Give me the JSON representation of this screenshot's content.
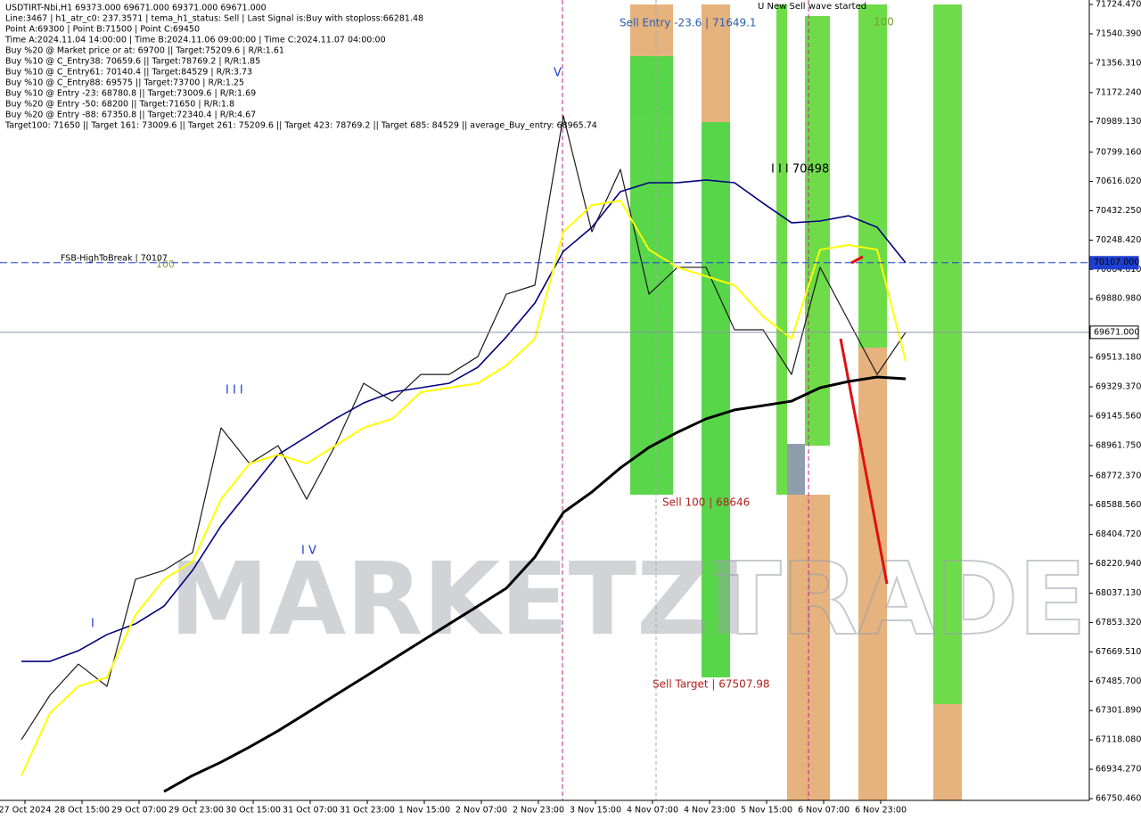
{
  "chart_data": {
    "type": "line",
    "header_lines": [
      "USDTIRT-Nbi,H1  69373.000 69671.000 69371.000 69671.000",
      "Line:3467 | h1_atr_c0: 237.3571 | tema_h1_status: Sell | Last Signal is:Buy with stoploss:66281.48",
      "Point A:69300 | Point B:71500 | Point C:69450",
      "Time A:2024.11.04 14:00:00 | Time B:2024.11.06 09:00:00 | Time C:2024.11.07 04:00:00",
      "Buy %20 @ Market price or at: 69700 || Target:75209.6 | R/R:1.61",
      "Buy %10 @ C_Entry38: 70659.6 || Target:78769.2 | R/R:1.85",
      "Buy %10 @ C_Entry61: 70140.4 || Target:84529 | R/R:3.73",
      "Buy %10 @ C_Entry88: 69575 || Target:73700 | R/R:1.25",
      "Buy %10 @ Entry -23: 68780.8 || Target:73009.6 | R/R:1.69",
      "Buy %20 @ Entry -50: 68200 || Target:71650 | R/R:1.8",
      "Buy %20 @ Entry -88: 67350.8 || Target:72340.4 | R/R:4.67",
      "Target100: 71650 || Target 161: 73009.6 || Target 261: 75209.6 || Target 423: 78769.2 || Target 685: 84529 || average_Buy_entry: 68965.74"
    ],
    "annotations": [
      "Sell Entry -23.6 | 71649.1",
      "U New Sell wave started",
      "100",
      "I I I 70498",
      "FSB-HighToBreak | 70107",
      "100",
      "Sell 100 | 68646",
      "Sell Target | 67507.98",
      "V",
      "I I I",
      "I V",
      "I"
    ],
    "watermark": [
      "MARKETZI",
      "TRADE"
    ],
    "x_labels": [
      "27 Oct 2024",
      "28 Oct 15:00",
      "29 Oct 07:00",
      "29 Oct 23:00",
      "30 Oct 15:00",
      "31 Oct 07:00",
      "31 Oct 23:00",
      "1 Nov 15:00",
      "2 Nov 07:00",
      "2 Nov 23:00",
      "3 Nov 15:00",
      "4 Nov 07:00",
      "4 Nov 23:00",
      "5 Nov 15:00",
      "6 Nov 07:00",
      "6 Nov 23:00"
    ],
    "series": [
      {
        "name": "Price",
        "color": "#1a1a1a",
        "values": [
          67119,
          67398,
          67593,
          67454,
          68124,
          68180,
          68291,
          69073,
          68849,
          68961,
          68626,
          68961,
          69352,
          69240,
          69407,
          69407,
          69519,
          69910,
          69966,
          71027,
          70301,
          70692,
          69910,
          70078,
          70078,
          69687,
          69687,
          69407,
          70078,
          69742,
          69407,
          69671
        ]
      },
      {
        "name": "MA fast",
        "color": "#00007f",
        "values": [
          67610,
          67610,
          67677,
          67778,
          67845,
          67956,
          68180,
          68459,
          68682,
          68905,
          69017,
          69129,
          69229,
          69296,
          69324,
          69352,
          69452,
          69642,
          69854,
          70178,
          70329,
          70552,
          70608,
          70608,
          70625,
          70608,
          70480,
          70357,
          70368,
          70401,
          70329,
          70106
        ]
      },
      {
        "name": "MA slow",
        "color": "#000000",
        "values": [
          null,
          null,
          null,
          null,
          null,
          66795,
          66895,
          66979,
          67074,
          67175,
          67286,
          67398,
          67509,
          67621,
          67733,
          67845,
          67956,
          68068,
          68263,
          68543,
          68671,
          68822,
          68950,
          69045,
          69129,
          69185,
          69212,
          69240,
          69324,
          69363,
          69391,
          69380
        ]
      },
      {
        "name": "Signal",
        "color": "#ffff00",
        "values": [
          66895,
          67286,
          67454,
          67509,
          67901,
          68124,
          68236,
          68626,
          68849,
          68905,
          68849,
          68961,
          69073,
          69129,
          69296,
          69324,
          69352,
          69463,
          69631,
          70301,
          70468,
          70496,
          70189,
          70078,
          70022,
          69966,
          69771,
          69631,
          70189,
          70217,
          70189,
          69491
        ]
      }
    ],
    "hlines": [
      {
        "value": 70107,
        "label": "70107.000",
        "color": "#1e3fd0"
      },
      {
        "value": 69671,
        "label": "69671.000",
        "color": "#8a94a8"
      }
    ],
    "ylim": [
      66739.3,
      71752.4
    ],
    "yticks": [
      {
        "value": 71724.47,
        "label": "71724.470"
      },
      {
        "value": 71540.39,
        "label": "71540.390"
      },
      {
        "value": 71356.31,
        "label": "71356.310"
      },
      {
        "value": 71172.24,
        "label": "71172.240"
      },
      {
        "value": 70989.13,
        "label": "70989.130"
      },
      {
        "value": 70799.16,
        "label": "70799.160"
      },
      {
        "value": 70616.02,
        "label": "70616.020"
      },
      {
        "value": 70432.25,
        "label": "70432.250"
      },
      {
        "value": 70248.42,
        "label": "70248.420"
      },
      {
        "value": 70064.61,
        "label": "70064.610"
      },
      {
        "value": 69880.98,
        "label": "69880.980"
      },
      {
        "value": 69513.18,
        "label": "69513.180"
      },
      {
        "value": 69329.37,
        "label": "69329.370"
      },
      {
        "value": 69145.56,
        "label": "69145.560"
      },
      {
        "value": 68961.75,
        "label": "68961.750"
      },
      {
        "value": 68772.37,
        "label": "68772.370"
      },
      {
        "value": 68588.56,
        "label": "68588.560"
      },
      {
        "value": 68404.72,
        "label": "68404.720"
      },
      {
        "value": 68220.94,
        "label": "68220.940"
      },
      {
        "value": 68037.13,
        "label": "68037.130"
      },
      {
        "value": 67853.32,
        "label": "67853.320"
      },
      {
        "value": 67669.51,
        "label": "67669.510"
      },
      {
        "value": 67485.7,
        "label": "67485.700"
      },
      {
        "value": 67301.89,
        "label": "67301.890"
      },
      {
        "value": 67118.08,
        "label": "67118.080"
      },
      {
        "value": 66934.27,
        "label": "66934.270"
      },
      {
        "value": 66750.46,
        "label": "66750.460"
      }
    ]
  }
}
